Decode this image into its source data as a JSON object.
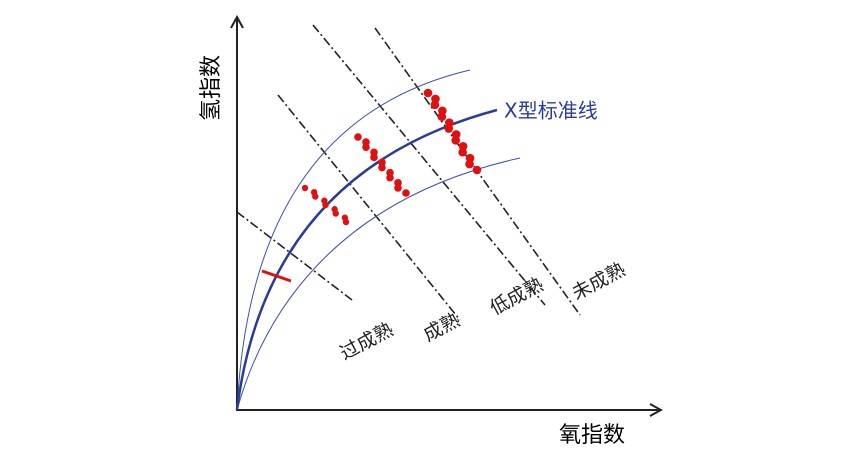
{
  "axes": {
    "y_label": "氢指数",
    "x_label": "氧指数"
  },
  "curve_label": "X型标准线",
  "zones": [
    "过成熟",
    "成熟",
    "低成熟",
    "未成熟"
  ]
}
